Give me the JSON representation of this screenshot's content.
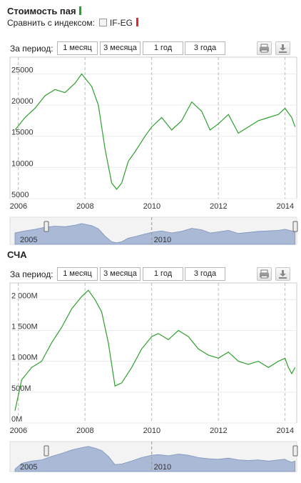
{
  "section1": {
    "title": "Стоимость пая",
    "compare_label": "Сравнить с индексом:",
    "index_name": "IF-EG",
    "period_label": "За период:",
    "buttons": [
      "1 месяц",
      "3 месяца",
      "1 год",
      "3 года"
    ]
  },
  "section2": {
    "title": "СЧА",
    "period_label": "За период:",
    "buttons": [
      "1 месяц",
      "3 месяца",
      "1 год",
      "3 года"
    ]
  },
  "colors": {
    "series": "#2ca02c",
    "index_marker": "#e8262a",
    "navigator": "#a9b9d6",
    "grid": "#bbbbbb"
  },
  "icons": [
    "print-icon",
    "download-icon"
  ],
  "chart_data": [
    {
      "type": "line",
      "title": "Стоимость пая",
      "x_ticks": [
        "2006",
        "2008",
        "2010",
        "2012",
        "2014"
      ],
      "y_ticks": [
        "5000",
        "10000",
        "15000",
        "20000",
        "25000"
      ],
      "ylim": [
        5000,
        27000
      ],
      "x": [
        2005.9,
        2006.2,
        2006.5,
        2006.8,
        2007.1,
        2007.4,
        2007.7,
        2007.9,
        2008.2,
        2008.4,
        2008.6,
        2008.8,
        2008.95,
        2009.1,
        2009.3,
        2009.5,
        2009.8,
        2010.0,
        2010.3,
        2010.6,
        2010.9,
        2011.2,
        2011.5,
        2011.75,
        2012.0,
        2012.3,
        2012.6,
        2012.9,
        2013.2,
        2013.5,
        2013.8,
        2014.0,
        2014.2,
        2014.3
      ],
      "series": [
        {
          "name": "Стоимость пая",
          "values": [
            16000,
            18000,
            19500,
            21500,
            22500,
            22000,
            23500,
            25000,
            23000,
            20000,
            13000,
            7500,
            6500,
            7500,
            11000,
            12500,
            15000,
            16500,
            18000,
            16000,
            17500,
            20500,
            19000,
            16000,
            17000,
            18500,
            15500,
            16500,
            17500,
            18000,
            18500,
            19500,
            18000,
            16500
          ]
        }
      ]
    },
    {
      "type": "line",
      "title": "СЧА",
      "x_ticks": [
        "2006",
        "2008",
        "2010",
        "2012",
        "2014"
      ],
      "y_ticks": [
        "0M",
        "500M",
        "1 000M",
        "1 500M",
        "2 000M"
      ],
      "ylim": [
        0,
        2200
      ],
      "x": [
        2005.9,
        2006.1,
        2006.4,
        2006.7,
        2007.0,
        2007.3,
        2007.6,
        2007.9,
        2008.1,
        2008.3,
        2008.5,
        2008.7,
        2008.9,
        2009.1,
        2009.4,
        2009.7,
        2010.0,
        2010.2,
        2010.5,
        2010.8,
        2011.1,
        2011.4,
        2011.7,
        2012.0,
        2012.3,
        2012.6,
        2012.9,
        2013.2,
        2013.5,
        2013.8,
        2014.0,
        2014.1,
        2014.2,
        2014.3
      ],
      "series": [
        {
          "name": "СЧА",
          "values": [
            200,
            700,
            900,
            1000,
            1300,
            1550,
            1850,
            2050,
            2150,
            2000,
            1800,
            1300,
            600,
            650,
            900,
            1200,
            1400,
            1450,
            1350,
            1500,
            1400,
            1200,
            1100,
            1050,
            1150,
            1000,
            950,
            1000,
            900,
            1000,
            1050,
            900,
            800,
            900
          ]
        }
      ]
    }
  ],
  "navigator": {
    "labels": [
      "2005",
      "2010"
    ]
  }
}
